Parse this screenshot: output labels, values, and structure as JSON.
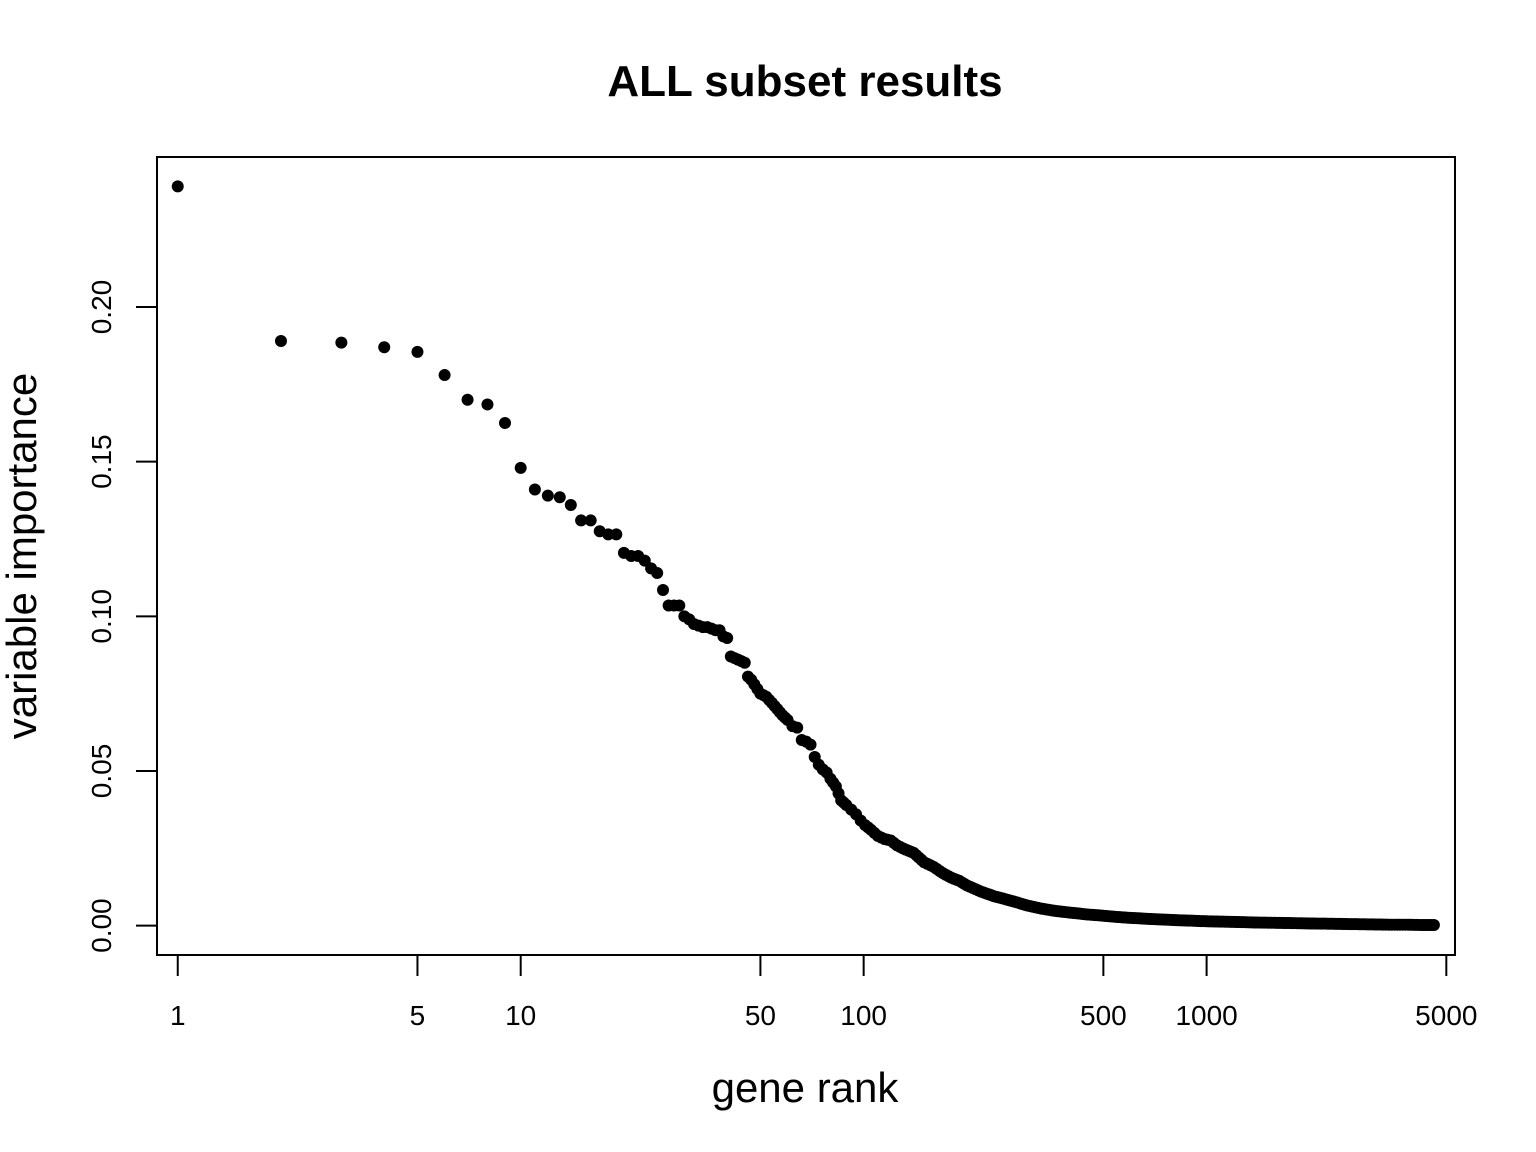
{
  "chart_data": {
    "type": "scatter",
    "title": "ALL subset results",
    "xlabel": "gene rank",
    "ylabel": "variable importance",
    "x_scale": "log",
    "xlim": [
      0.87,
      5300
    ],
    "ylim": [
      -0.0095,
      0.2485
    ],
    "x_ticks": [
      1,
      5,
      10,
      50,
      100,
      500,
      1000,
      5000
    ],
    "x_tick_labels": [
      "1",
      "5",
      "10",
      "50",
      "100",
      "500",
      "1000",
      "5000"
    ],
    "y_ticks": [
      0.0,
      0.05,
      0.1,
      0.15,
      0.2
    ],
    "y_tick_labels": [
      "0.00",
      "0.05",
      "0.10",
      "0.15",
      "0.20"
    ],
    "grid": false,
    "point_color": "#000000",
    "series": [
      {
        "x": [
          1,
          2,
          3,
          4,
          5,
          6,
          7,
          8,
          9,
          10,
          11,
          12,
          13,
          14,
          15,
          16,
          17,
          18,
          19,
          20,
          21,
          22,
          23,
          24,
          25,
          26,
          27,
          28,
          29,
          30,
          31,
          32,
          33,
          34,
          35,
          36,
          37,
          38,
          39,
          40,
          41,
          42,
          43,
          44,
          45,
          46,
          47,
          48,
          50,
          52,
          54,
          56,
          58,
          60,
          62,
          64,
          66,
          68,
          70,
          72,
          74,
          76,
          78,
          80,
          83,
          86,
          89,
          92,
          95,
          98,
          101,
          105,
          110,
          115,
          120,
          125,
          130,
          140,
          150,
          160,
          170,
          180,
          190,
          200,
          220,
          240,
          260,
          280,
          300,
          330,
          360,
          400,
          450,
          500,
          550,
          600,
          700,
          800,
          900,
          1000,
          1200,
          1400,
          1600,
          1800,
          2000,
          2300,
          2600,
          3000,
          3400,
          3800,
          4200,
          4600
        ],
        "y": [
          0.239,
          0.189,
          0.1885,
          0.187,
          0.1855,
          0.178,
          0.17,
          0.1685,
          0.1625,
          0.148,
          0.141,
          0.139,
          0.1385,
          0.136,
          0.131,
          0.131,
          0.1275,
          0.1265,
          0.1265,
          0.1205,
          0.1195,
          0.1195,
          0.118,
          0.1155,
          0.114,
          0.1085,
          0.1035,
          0.1035,
          0.1035,
          0.1,
          0.099,
          0.0975,
          0.097,
          0.0965,
          0.0965,
          0.096,
          0.0955,
          0.0955,
          0.0935,
          0.093,
          0.087,
          0.0865,
          0.086,
          0.0855,
          0.085,
          0.0805,
          0.0795,
          0.078,
          0.075,
          0.074,
          0.072,
          0.07,
          0.068,
          0.0665,
          0.0645,
          0.064,
          0.06,
          0.0595,
          0.0585,
          0.0545,
          0.052,
          0.0505,
          0.0495,
          0.0475,
          0.045,
          0.0405,
          0.039,
          0.0375,
          0.036,
          0.034,
          0.0325,
          0.031,
          0.029,
          0.028,
          0.0275,
          0.026,
          0.025,
          0.0235,
          0.0205,
          0.019,
          0.017,
          0.0155,
          0.0145,
          0.013,
          0.011,
          0.0095,
          0.0085,
          0.0075,
          0.0065,
          0.0055,
          0.0048,
          0.0042,
          0.0036,
          0.0032,
          0.0028,
          0.0025,
          0.0021,
          0.0018,
          0.0016,
          0.0014,
          0.0012,
          0.001,
          0.0009,
          0.0008,
          0.0007,
          0.0006,
          0.0005,
          0.0004,
          0.0003,
          0.0003,
          0.0002,
          0.0002
        ]
      }
    ]
  }
}
